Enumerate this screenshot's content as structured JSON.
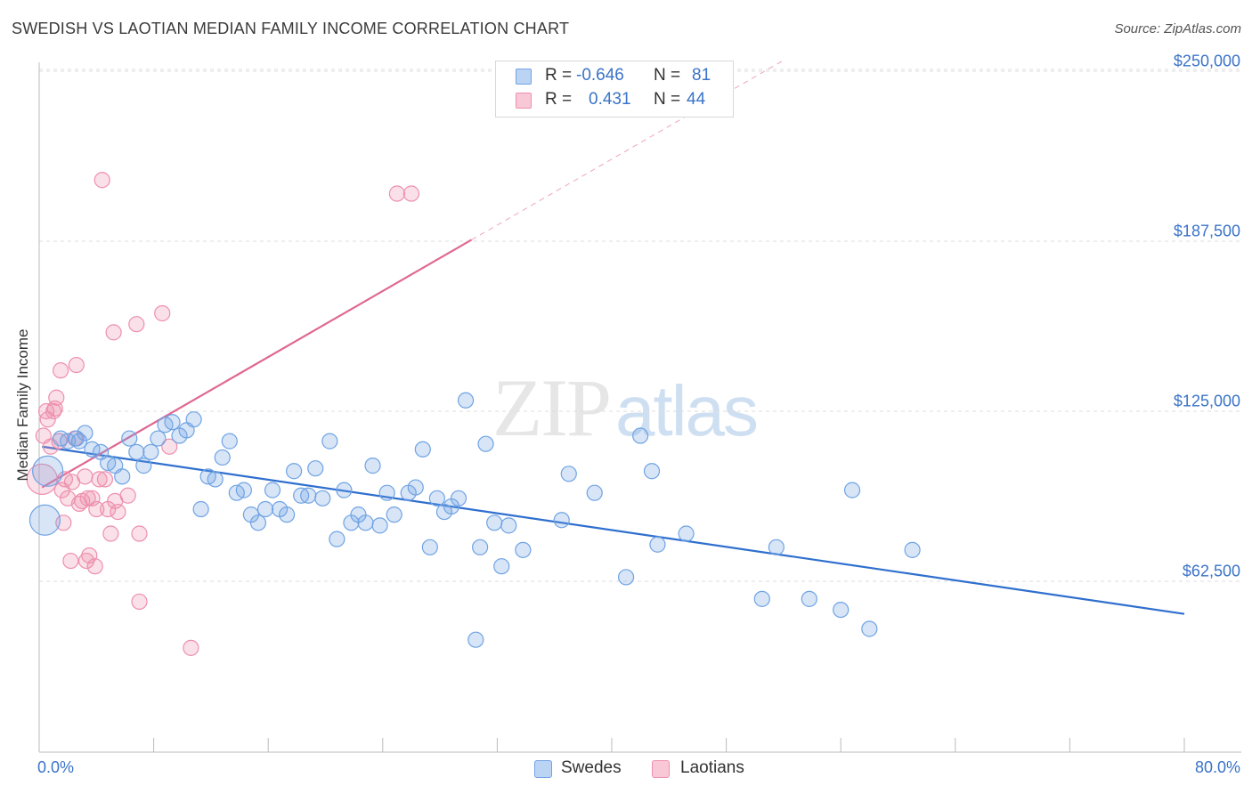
{
  "title": "SWEDISH VS LAOTIAN MEDIAN FAMILY INCOME CORRELATION CHART",
  "source": "Source: ZipAtlas.com",
  "watermark": {
    "part1": "ZIP",
    "part2": "atlas"
  },
  "colors": {
    "swedes": "#6fa3e4",
    "swedes_line": "#2f6fce",
    "laotians": "#ee8fae",
    "laotians_line": "#e06893",
    "axis_text": "#3a73c8",
    "grid": "#dddddd"
  },
  "stats": [
    {
      "r_label": "R =",
      "r_value": "-0.646",
      "n_label": "N =",
      "n_value": "81",
      "series": "swedes"
    },
    {
      "r_label": "R =",
      "r_value": "0.431",
      "n_label": "N =",
      "n_value": "44",
      "series": "laotians"
    }
  ],
  "legend": [
    {
      "label": "Swedes"
    },
    {
      "label": "Laotians"
    }
  ],
  "chart_data": {
    "type": "scatter",
    "title": "SWEDISH VS LAOTIAN MEDIAN FAMILY INCOME CORRELATION CHART",
    "xlabel": "",
    "ylabel": "Median Family Income",
    "xlim": [
      0,
      80
    ],
    "ylim": [
      10000,
      260000
    ],
    "x_tick_labels": [
      "0.0%",
      "80.0%"
    ],
    "y_ticks": [
      62500,
      125000,
      187500,
      250000
    ],
    "y_tick_labels": [
      "$62,500",
      "$125,000",
      "$187,500",
      "$250,000"
    ],
    "grid": true,
    "series": [
      {
        "name": "Swedes",
        "trend": {
          "x": [
            0.2,
            80
          ],
          "y": [
            112000,
            50500
          ]
        },
        "points": [
          {
            "x": 0.6,
            "y": 103000,
            "big": true
          },
          {
            "x": 0.4,
            "y": 85000,
            "big": true
          },
          {
            "x": 1.5,
            "y": 115000
          },
          {
            "x": 2.0,
            "y": 114000
          },
          {
            "x": 2.8,
            "y": 114000
          },
          {
            "x": 3.2,
            "y": 117000
          },
          {
            "x": 3.7,
            "y": 111000
          },
          {
            "x": 4.3,
            "y": 110000
          },
          {
            "x": 4.8,
            "y": 106000
          },
          {
            "x": 5.3,
            "y": 105000
          },
          {
            "x": 5.8,
            "y": 101000
          },
          {
            "x": 6.3,
            "y": 115000
          },
          {
            "x": 6.8,
            "y": 110000
          },
          {
            "x": 7.3,
            "y": 105000
          },
          {
            "x": 7.8,
            "y": 110000
          },
          {
            "x": 8.3,
            "y": 115000
          },
          {
            "x": 8.8,
            "y": 120000
          },
          {
            "x": 9.3,
            "y": 121000
          },
          {
            "x": 9.8,
            "y": 116000
          },
          {
            "x": 10.3,
            "y": 118000
          },
          {
            "x": 10.8,
            "y": 122000
          },
          {
            "x": 11.3,
            "y": 89000
          },
          {
            "x": 11.8,
            "y": 101000
          },
          {
            "x": 12.3,
            "y": 100000
          },
          {
            "x": 12.8,
            "y": 108000
          },
          {
            "x": 13.3,
            "y": 114000
          },
          {
            "x": 13.8,
            "y": 95000
          },
          {
            "x": 14.3,
            "y": 96000
          },
          {
            "x": 14.8,
            "y": 87000
          },
          {
            "x": 15.3,
            "y": 84000
          },
          {
            "x": 15.8,
            "y": 89000
          },
          {
            "x": 16.3,
            "y": 96000
          },
          {
            "x": 16.8,
            "y": 89000
          },
          {
            "x": 17.3,
            "y": 87000
          },
          {
            "x": 17.8,
            "y": 103000
          },
          {
            "x": 18.3,
            "y": 94000
          },
          {
            "x": 18.8,
            "y": 94000
          },
          {
            "x": 19.3,
            "y": 104000
          },
          {
            "x": 19.8,
            "y": 93000
          },
          {
            "x": 20.3,
            "y": 114000
          },
          {
            "x": 20.8,
            "y": 78000
          },
          {
            "x": 21.3,
            "y": 96000
          },
          {
            "x": 21.8,
            "y": 84000
          },
          {
            "x": 22.3,
            "y": 87000
          },
          {
            "x": 22.8,
            "y": 84000
          },
          {
            "x": 23.3,
            "y": 105000
          },
          {
            "x": 23.8,
            "y": 83000
          },
          {
            "x": 24.3,
            "y": 95000
          },
          {
            "x": 24.8,
            "y": 87000
          },
          {
            "x": 25.8,
            "y": 95000
          },
          {
            "x": 26.3,
            "y": 97000
          },
          {
            "x": 26.8,
            "y": 111000
          },
          {
            "x": 27.3,
            "y": 75000
          },
          {
            "x": 27.8,
            "y": 93000
          },
          {
            "x": 28.3,
            "y": 88000
          },
          {
            "x": 28.8,
            "y": 90000
          },
          {
            "x": 29.3,
            "y": 93000
          },
          {
            "x": 29.8,
            "y": 129000
          },
          {
            "x": 30.5,
            "y": 41000
          },
          {
            "x": 30.8,
            "y": 75000
          },
          {
            "x": 31.2,
            "y": 113000
          },
          {
            "x": 31.8,
            "y": 84000
          },
          {
            "x": 32.3,
            "y": 68000
          },
          {
            "x": 32.8,
            "y": 83000
          },
          {
            "x": 33.8,
            "y": 74000
          },
          {
            "x": 36.5,
            "y": 85000
          },
          {
            "x": 37.0,
            "y": 102000
          },
          {
            "x": 38.8,
            "y": 95000
          },
          {
            "x": 41.0,
            "y": 64000
          },
          {
            "x": 42.0,
            "y": 116000
          },
          {
            "x": 42.8,
            "y": 103000
          },
          {
            "x": 43.2,
            "y": 76000
          },
          {
            "x": 45.2,
            "y": 80000
          },
          {
            "x": 50.5,
            "y": 56000
          },
          {
            "x": 51.5,
            "y": 75000
          },
          {
            "x": 53.8,
            "y": 56000
          },
          {
            "x": 56.0,
            "y": 52000
          },
          {
            "x": 56.8,
            "y": 96000
          },
          {
            "x": 58.0,
            "y": 45000
          },
          {
            "x": 61.0,
            "y": 74000
          },
          {
            "x": 2.6,
            "y": 115000
          }
        ]
      },
      {
        "name": "Laotians",
        "trend": {
          "x": [
            0.2,
            30.2
          ],
          "y": [
            97000,
            188000
          ],
          "dashed_to": {
            "x": 52,
            "y": 254000
          }
        },
        "points": [
          {
            "x": 0.2,
            "y": 100000,
            "big": true
          },
          {
            "x": 0.3,
            "y": 116000
          },
          {
            "x": 0.5,
            "y": 125000
          },
          {
            "x": 0.6,
            "y": 122000
          },
          {
            "x": 0.8,
            "y": 112000
          },
          {
            "x": 1.0,
            "y": 125000
          },
          {
            "x": 1.1,
            "y": 126000
          },
          {
            "x": 1.2,
            "y": 130000
          },
          {
            "x": 1.4,
            "y": 114000
          },
          {
            "x": 1.5,
            "y": 140000
          },
          {
            "x": 1.6,
            "y": 96000
          },
          {
            "x": 1.7,
            "y": 84000
          },
          {
            "x": 1.8,
            "y": 100000
          },
          {
            "x": 2.0,
            "y": 93000
          },
          {
            "x": 2.2,
            "y": 70000
          },
          {
            "x": 2.3,
            "y": 99000
          },
          {
            "x": 2.5,
            "y": 115000
          },
          {
            "x": 2.6,
            "y": 142000
          },
          {
            "x": 2.8,
            "y": 91000
          },
          {
            "x": 3.0,
            "y": 92000
          },
          {
            "x": 3.2,
            "y": 101000
          },
          {
            "x": 3.3,
            "y": 70000
          },
          {
            "x": 3.4,
            "y": 93000
          },
          {
            "x": 3.5,
            "y": 72000
          },
          {
            "x": 3.7,
            "y": 93000
          },
          {
            "x": 3.9,
            "y": 68000
          },
          {
            "x": 4.0,
            "y": 89000
          },
          {
            "x": 4.2,
            "y": 100000
          },
          {
            "x": 4.4,
            "y": 210000
          },
          {
            "x": 4.6,
            "y": 100000
          },
          {
            "x": 4.8,
            "y": 89000
          },
          {
            "x": 5.0,
            "y": 80000
          },
          {
            "x": 5.2,
            "y": 154000
          },
          {
            "x": 5.3,
            "y": 92000
          },
          {
            "x": 5.5,
            "y": 88000
          },
          {
            "x": 6.2,
            "y": 94000
          },
          {
            "x": 6.8,
            "y": 157000
          },
          {
            "x": 7.0,
            "y": 80000
          },
          {
            "x": 7.0,
            "y": 55000
          },
          {
            "x": 8.6,
            "y": 161000
          },
          {
            "x": 9.1,
            "y": 112000
          },
          {
            "x": 10.6,
            "y": 38000
          },
          {
            "x": 25.0,
            "y": 205000
          },
          {
            "x": 26.0,
            "y": 205000
          }
        ]
      }
    ]
  }
}
